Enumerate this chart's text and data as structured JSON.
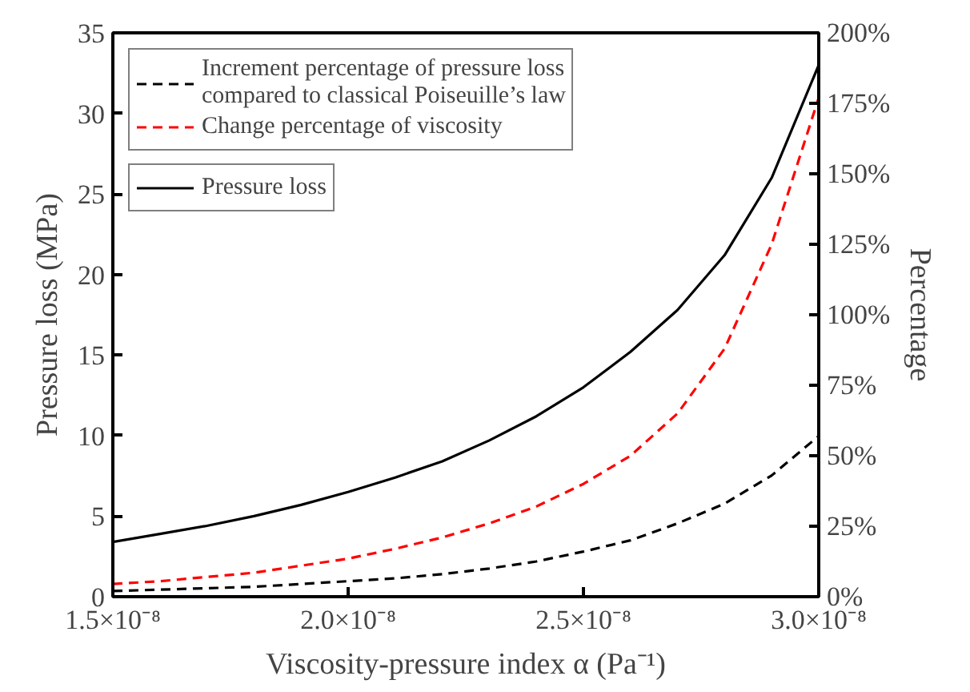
{
  "chart_data": {
    "type": "line",
    "xlabel": "Viscosity-pressure index α (Pa⁻¹)",
    "ylabel": "Pressure loss (MPa)",
    "y2label": "Percentage",
    "x": [
      1.5e-08,
      1.6e-08,
      1.7e-08,
      1.8e-08,
      1.9e-08,
      2e-08,
      2.1e-08,
      2.2e-08,
      2.3e-08,
      2.4e-08,
      2.5e-08,
      2.6e-08,
      2.7e-08,
      2.8e-08,
      2.9e-08,
      3e-08
    ],
    "series": [
      {
        "name": "Increment percentage of pressure loss\ncompared to classical Poiseuille’s law",
        "color": "#000000",
        "line_style": "dashed",
        "axis": "y2",
        "values": [
          2,
          2.5,
          3,
          3.5,
          4.5,
          5.5,
          6.5,
          8,
          10,
          12.5,
          16,
          20,
          26,
          33,
          43,
          57
        ]
      },
      {
        "name": "Change percentage of viscosity",
        "color": "#ff0000",
        "line_style": "dashed",
        "axis": "y2",
        "values": [
          4.5,
          5.5,
          7,
          8.5,
          11,
          13.5,
          17,
          21,
          26,
          32,
          40,
          50,
          65,
          88,
          125,
          177
        ]
      },
      {
        "name": "Pressure loss",
        "color": "#000000",
        "line_style": "solid",
        "values": [
          3.4,
          3.9,
          4.4,
          5,
          5.7,
          6.5,
          7.4,
          8.4,
          9.7,
          11.2,
          13,
          15.2,
          17.8,
          21.2,
          26,
          33
        ]
      }
    ],
    "xlim": [
      1.5e-08,
      3e-08
    ],
    "xticks": [
      {
        "value": 1.5e-08,
        "label": "1.5×10⁻⁸"
      },
      {
        "value": 2e-08,
        "label": "2.0×10⁻⁸"
      },
      {
        "value": 2.5e-08,
        "label": "2.5×10⁻⁸"
      },
      {
        "value": 3e-08,
        "label": "3.0×10⁻⁸"
      }
    ],
    "ylim": [
      0,
      35
    ],
    "yticks": [
      0,
      5,
      10,
      15,
      20,
      25,
      30,
      35
    ],
    "y2lim": [
      0,
      200
    ],
    "y2ticks": [
      {
        "value": 0,
        "label": "0%"
      },
      {
        "value": 25,
        "label": "25%"
      },
      {
        "value": 50,
        "label": "50%"
      },
      {
        "value": 75,
        "label": "75%"
      },
      {
        "value": 100,
        "label": "100%"
      },
      {
        "value": 125,
        "label": "125%"
      },
      {
        "value": 150,
        "label": "150%"
      },
      {
        "value": 175,
        "label": "175%"
      },
      {
        "value": 200,
        "label": "200%"
      }
    ],
    "legend": "top left",
    "grid": false,
    "marker": "none"
  }
}
